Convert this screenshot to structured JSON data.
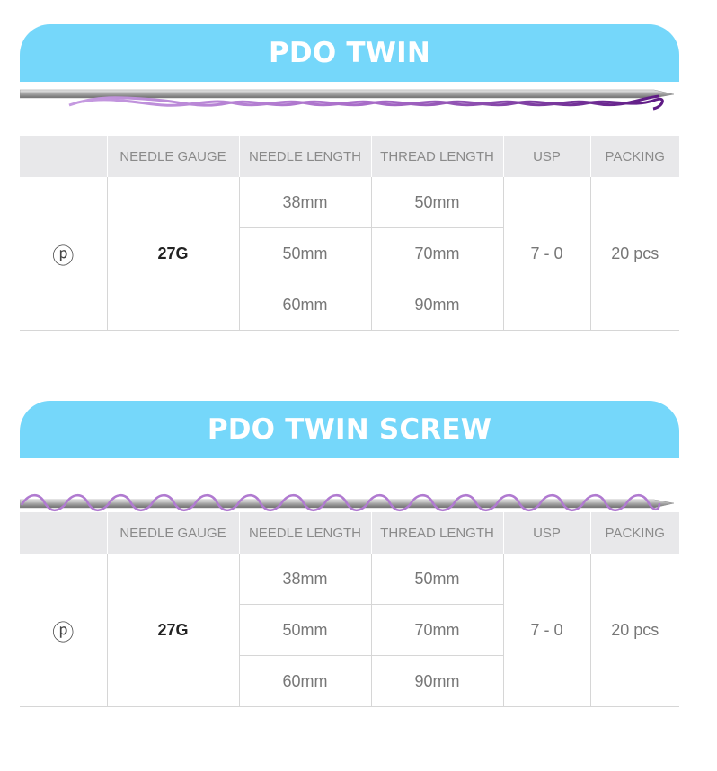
{
  "sections": [
    {
      "title": "PDO TWIN",
      "headers": [
        "",
        "NEEDLE GAUGE",
        "NEEDLE LENGTH",
        "THREAD LENGTH",
        "USP",
        "PACKING"
      ],
      "logo_mark": "ⓟ",
      "gauge": "27G",
      "rows": [
        {
          "needle_length": "38mm",
          "thread_length": "50mm"
        },
        {
          "needle_length": "50mm",
          "thread_length": "70mm"
        },
        {
          "needle_length": "60mm",
          "thread_length": "90mm"
        }
      ],
      "usp": "7 - 0",
      "packing": "20 pcs"
    },
    {
      "title": "PDO TWIN SCREW",
      "headers": [
        "",
        "NEEDLE GAUGE",
        "NEEDLE LENGTH",
        "THREAD LENGTH",
        "USP",
        "PACKING"
      ],
      "logo_mark": "ⓟ",
      "gauge": "27G",
      "rows": [
        {
          "needle_length": "38mm",
          "thread_length": "50mm"
        },
        {
          "needle_length": "50mm",
          "thread_length": "70mm"
        },
        {
          "needle_length": "60mm",
          "thread_length": "90mm"
        }
      ],
      "usp": "7 - 0",
      "packing": "20 pcs"
    }
  ],
  "colors": {
    "banner": "#75d7fa",
    "header_bg": "#e8e8ea",
    "thread_purple": "#7a2a9c",
    "thread_light": "#b57fd4"
  }
}
